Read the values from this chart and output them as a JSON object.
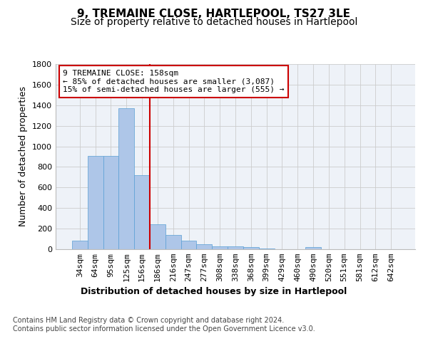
{
  "title": "9, TREMAINE CLOSE, HARTLEPOOL, TS27 3LE",
  "subtitle": "Size of property relative to detached houses in Hartlepool",
  "xlabel": "Distribution of detached houses by size in Hartlepool",
  "ylabel": "Number of detached properties",
  "categories": [
    "34sqm",
    "64sqm",
    "95sqm",
    "125sqm",
    "156sqm",
    "186sqm",
    "216sqm",
    "247sqm",
    "277sqm",
    "308sqm",
    "338sqm",
    "368sqm",
    "399sqm",
    "429sqm",
    "460sqm",
    "490sqm",
    "520sqm",
    "551sqm",
    "581sqm",
    "612sqm",
    "642sqm"
  ],
  "values": [
    80,
    910,
    910,
    1370,
    720,
    245,
    140,
    85,
    50,
    30,
    30,
    20,
    5,
    0,
    0,
    20,
    0,
    0,
    0,
    0,
    0
  ],
  "bar_color": "#aec6e8",
  "bar_edgecolor": "#5a9fd4",
  "vline_x": 4.5,
  "vline_color": "#cc0000",
  "annotation_text": "9 TREMAINE CLOSE: 158sqm\n← 85% of detached houses are smaller (3,087)\n15% of semi-detached houses are larger (555) →",
  "annotation_box_color": "#ffffff",
  "annotation_box_edgecolor": "#cc0000",
  "ylim": [
    0,
    1800
  ],
  "yticks": [
    0,
    200,
    400,
    600,
    800,
    1000,
    1200,
    1400,
    1600,
    1800
  ],
  "grid_color": "#cccccc",
  "bg_color": "#eef2f8",
  "footer": "Contains HM Land Registry data © Crown copyright and database right 2024.\nContains public sector information licensed under the Open Government Licence v3.0.",
  "title_fontsize": 11,
  "subtitle_fontsize": 10,
  "xlabel_fontsize": 9,
  "ylabel_fontsize": 9,
  "tick_fontsize": 8,
  "annotation_fontsize": 8,
  "footer_fontsize": 7
}
